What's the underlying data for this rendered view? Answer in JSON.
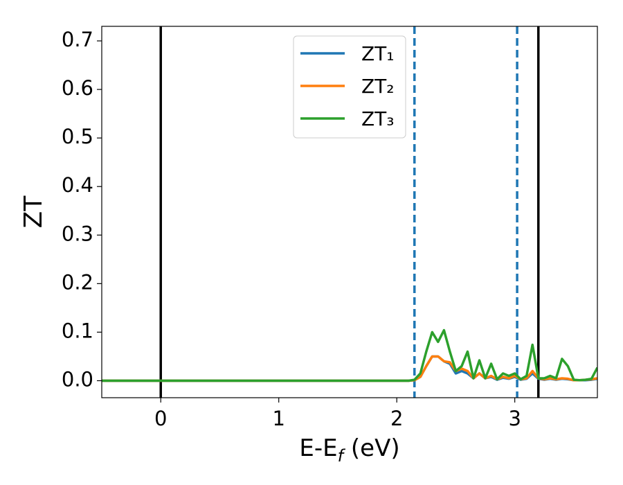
{
  "chart_data": {
    "type": "line",
    "x_label": {
      "main": "E-E",
      "sub": "f",
      "rest": " (eV)"
    },
    "y_label": "ZT",
    "x": [
      -0.5,
      2.0,
      2.1,
      2.15,
      2.2,
      2.25,
      2.3,
      2.35,
      2.4,
      2.45,
      2.5,
      2.55,
      2.6,
      2.65,
      2.7,
      2.75,
      2.8,
      2.85,
      2.9,
      2.95,
      3.0,
      3.05,
      3.1,
      3.15,
      3.2,
      3.25,
      3.3,
      3.35,
      3.4,
      3.45,
      3.5,
      3.55,
      3.6,
      3.65,
      3.7
    ],
    "series": [
      {
        "name": "ZT₁",
        "color": "#1f77b4",
        "values": [
          0,
          0,
          0,
          0.001,
          0.008,
          0.03,
          0.05,
          0.05,
          0.04,
          0.035,
          0.015,
          0.02,
          0.015,
          0.005,
          0.015,
          0.005,
          0.008,
          0.002,
          0.006,
          0.004,
          0.008,
          0.002,
          0.004,
          0.015,
          0.004,
          0.002,
          0.004,
          0.002,
          0.004,
          0.003,
          0.001,
          0.001,
          0.001,
          0.002,
          0.004
        ]
      },
      {
        "name": "ZT₂",
        "color": "#ff7f0e",
        "values": [
          0,
          0,
          0,
          0.001,
          0.008,
          0.03,
          0.05,
          0.05,
          0.04,
          0.038,
          0.02,
          0.025,
          0.02,
          0.005,
          0.015,
          0.005,
          0.01,
          0.003,
          0.008,
          0.005,
          0.01,
          0.003,
          0.005,
          0.02,
          0.005,
          0.003,
          0.005,
          0.003,
          0.005,
          0.004,
          0.001,
          0.001,
          0.002,
          0.003,
          0.005
        ]
      },
      {
        "name": "ZT₃",
        "color": "#2ca02c",
        "values": [
          0,
          0,
          0,
          0.002,
          0.015,
          0.06,
          0.1,
          0.08,
          0.104,
          0.06,
          0.02,
          0.03,
          0.06,
          0.005,
          0.042,
          0.005,
          0.035,
          0.003,
          0.015,
          0.01,
          0.015,
          0.003,
          0.01,
          0.074,
          0.005,
          0.005,
          0.01,
          0.005,
          0.045,
          0.03,
          0.002,
          0.001,
          0.002,
          0.004,
          0.027
        ]
      }
    ],
    "vlines": [
      {
        "x": 0,
        "color": "#000000",
        "style": "solid"
      },
      {
        "x": 3.2,
        "color": "#000000",
        "style": "solid"
      },
      {
        "x": 2.15,
        "color": "#1f77b4",
        "style": "dashed"
      },
      {
        "x": 3.02,
        "color": "#1f77b4",
        "style": "dashed"
      }
    ],
    "xlim": [
      -0.5,
      3.7
    ],
    "ylim": [
      -0.035,
      0.73
    ],
    "xticks": [
      0,
      1,
      2,
      3
    ],
    "yticks": [
      {
        "value": 0,
        "label": "0.0"
      },
      0.1,
      0.2,
      0.3,
      0.4,
      0.5,
      0.6,
      0.7
    ],
    "legend": "upper-center",
    "grid": false
  }
}
